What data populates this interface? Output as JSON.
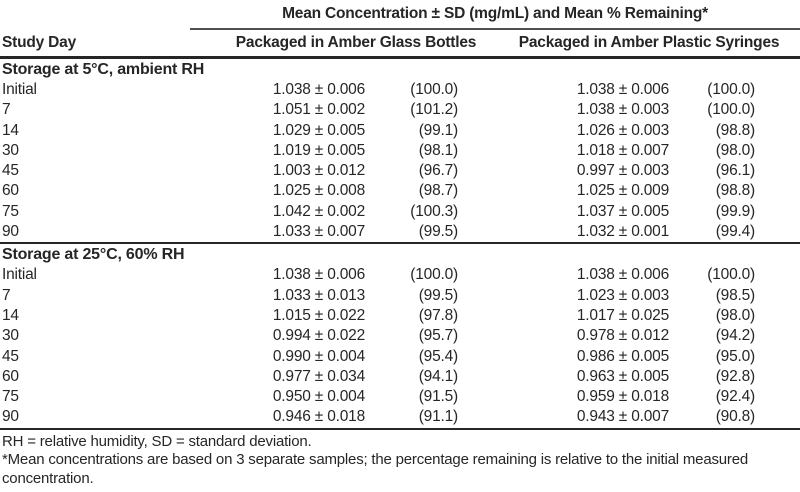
{
  "table": {
    "span_header": "Mean Concentration ± SD (mg/mL) and Mean % Remaining*",
    "col_headers": {
      "study_day": "Study Day",
      "glass": "Packaged in Amber Glass Bottles",
      "syringe": "Packaged in Amber Plastic Syringes"
    },
    "sections": [
      {
        "title": "Storage at 5°C, ambient RH",
        "rows": [
          {
            "day": "Initial",
            "glass_conc": "1.038 ± 0.006",
            "glass_pct": "(100.0)",
            "syr_conc": "1.038 ± 0.006",
            "syr_pct": "(100.0)"
          },
          {
            "day": "7",
            "glass_conc": "1.051 ± 0.002",
            "glass_pct": "(101.2)",
            "syr_conc": "1.038 ± 0.003",
            "syr_pct": "(100.0)"
          },
          {
            "day": "14",
            "glass_conc": "1.029 ± 0.005",
            "glass_pct": "(99.1)",
            "syr_conc": "1.026 ± 0.003",
            "syr_pct": "(98.8)"
          },
          {
            "day": "30",
            "glass_conc": "1.019 ± 0.005",
            "glass_pct": "(98.1)",
            "syr_conc": "1.018 ± 0.007",
            "syr_pct": "(98.0)"
          },
          {
            "day": "45",
            "glass_conc": "1.003 ± 0.012",
            "glass_pct": "(96.7)",
            "syr_conc": "0.997 ± 0.003",
            "syr_pct": "(96.1)"
          },
          {
            "day": "60",
            "glass_conc": "1.025 ± 0.008",
            "glass_pct": "(98.7)",
            "syr_conc": "1.025 ± 0.009",
            "syr_pct": "(98.8)"
          },
          {
            "day": "75",
            "glass_conc": "1.042 ± 0.002",
            "glass_pct": "(100.3)",
            "syr_conc": "1.037 ± 0.005",
            "syr_pct": "(99.9)"
          },
          {
            "day": "90",
            "glass_conc": "1.033 ± 0.007",
            "glass_pct": "(99.5)",
            "syr_conc": "1.032 ± 0.001",
            "syr_pct": "(99.4)"
          }
        ]
      },
      {
        "title": "Storage at 25°C, 60% RH",
        "rows": [
          {
            "day": "Initial",
            "glass_conc": "1.038 ± 0.006",
            "glass_pct": "(100.0)",
            "syr_conc": "1.038 ± 0.006",
            "syr_pct": "(100.0)"
          },
          {
            "day": "7",
            "glass_conc": "1.033 ± 0.013",
            "glass_pct": "(99.5)",
            "syr_conc": "1.023 ± 0.003",
            "syr_pct": "(98.5)"
          },
          {
            "day": "14",
            "glass_conc": "1.015 ± 0.022",
            "glass_pct": "(97.8)",
            "syr_conc": "1.017 ± 0.025",
            "syr_pct": "(98.0)"
          },
          {
            "day": "30",
            "glass_conc": "0.994 ± 0.022",
            "glass_pct": "(95.7)",
            "syr_conc": "0.978 ± 0.012",
            "syr_pct": "(94.2)"
          },
          {
            "day": "45",
            "glass_conc": "0.990 ± 0.004",
            "glass_pct": "(95.4)",
            "syr_conc": "0.986 ± 0.005",
            "syr_pct": "(95.0)"
          },
          {
            "day": "60",
            "glass_conc": "0.977 ± 0.034",
            "glass_pct": "(94.1)",
            "syr_conc": "0.963 ± 0.005",
            "syr_pct": "(92.8)"
          },
          {
            "day": "75",
            "glass_conc": "0.950 ± 0.004",
            "glass_pct": "(91.5)",
            "syr_conc": "0.959 ± 0.018",
            "syr_pct": "(92.4)"
          },
          {
            "day": "90",
            "glass_conc": "0.946 ± 0.018",
            "glass_pct": "(91.1)",
            "syr_conc": "0.943 ± 0.007",
            "syr_pct": "(90.8)"
          }
        ]
      }
    ],
    "footnotes": [
      "RH = relative humidity, SD = standard deviation.",
      "*Mean concentrations are based on 3 separate samples; the percentage remaining is relative to the initial measured concentration."
    ]
  },
  "colors": {
    "background": "#ffffff",
    "text": "#262626",
    "rule_heavy": "#262626",
    "rule_light": "#4f4f4f"
  }
}
